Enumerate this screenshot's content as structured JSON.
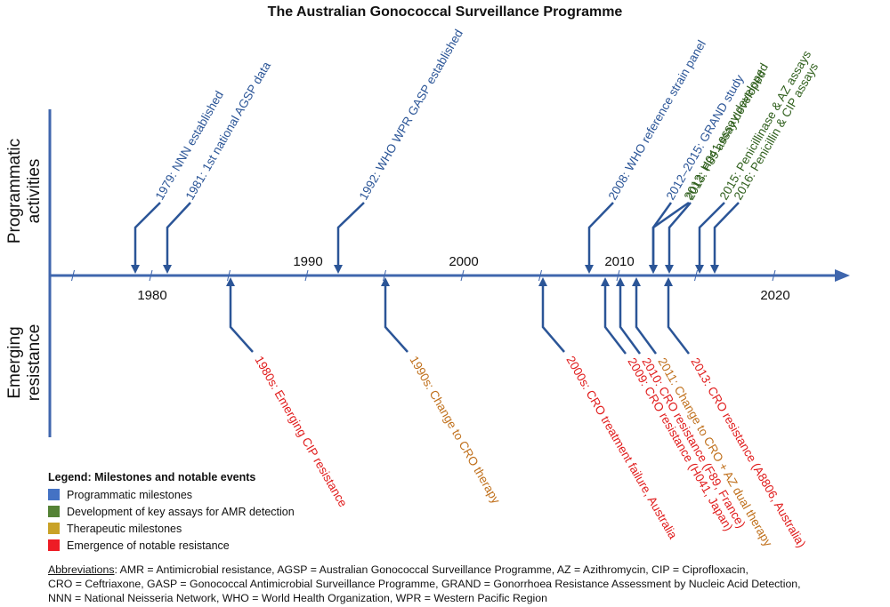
{
  "title": "The Australian Gonococcal Surveillance Programme",
  "axis_labels": {
    "top": [
      "Programmatic",
      "activities"
    ],
    "bottom": [
      "Emerging",
      "resistance"
    ]
  },
  "year_labels": [
    {
      "year": 1980,
      "label": "1980",
      "side": "below"
    },
    {
      "year": 1990,
      "label": "1990",
      "side": "above"
    },
    {
      "year": 2000,
      "label": "2000",
      "side": "above"
    },
    {
      "year": 2010,
      "label": "2010",
      "side": "above"
    },
    {
      "year": 2020,
      "label": "2020",
      "side": "below"
    }
  ],
  "colors": {
    "axis": "#3f66ad",
    "programmatic": "#2b5597",
    "assay": "#2f5f1c",
    "therapeutic": "#c0701c",
    "resistance": "#e01b1b",
    "arrow": "#2b5597"
  },
  "events_top": [
    {
      "year": 1979,
      "text": "1979: NNN established",
      "category": "programmatic"
    },
    {
      "year": 1981,
      "text": "1981: 1st national AGSP data",
      "category": "programmatic"
    },
    {
      "year": 1992,
      "text": "1992: WHO WPR GASP established",
      "category": "programmatic"
    },
    {
      "year": 2008,
      "text": "2008: WHO reference strain panel",
      "category": "programmatic"
    },
    {
      "year": 2012,
      "text": "2012–2015: GRAND study",
      "category": "programmatic"
    },
    {
      "year": 2013,
      "text": "2012: H041 assay developed",
      "category": "assay"
    },
    {
      "year": 2013,
      "text": "2013: F89 assay developed",
      "category": "assay"
    },
    {
      "year": 2015,
      "text": "2015: Penicillinase & AZ assays",
      "category": "assay"
    },
    {
      "year": 2016,
      "text": "2016: Penicillin & CIP assays",
      "category": "assay"
    }
  ],
  "events_bottom": [
    {
      "year": 1985,
      "text": "1980s: Emerging CIP resistance",
      "category": "resistance"
    },
    {
      "year": 1995,
      "text": "1990s: Change to CRO therapy",
      "category": "therapeutic"
    },
    {
      "year": 2005,
      "text": "2000s: CRO treatment failure, Australia",
      "category": "resistance"
    },
    {
      "year": 2009,
      "text": "2009: CRO resistance (H041, Japan)",
      "category": "resistance"
    },
    {
      "year": 2010,
      "text": "2010: CRO resistance (F89, France)",
      "category": "resistance"
    },
    {
      "year": 2011,
      "text": "2011: Change to CRO + AZ dual therapy",
      "category": "therapeutic"
    },
    {
      "year": 2013,
      "text": "2013: CRO resistance (A8806, Australia)",
      "category": "resistance"
    }
  ],
  "legend": {
    "title": "Legend: Milestones and notable events",
    "items": [
      {
        "label": "Programmatic milestones",
        "color": "#4472c4"
      },
      {
        "label": "Development of key assays for AMR detection",
        "color": "#548235"
      },
      {
        "label": "Therapeutic milestones",
        "color": "#c9a227"
      },
      {
        "label": "Emergence of notable resistance",
        "color": "#ee1c25"
      }
    ]
  },
  "abbreviations": {
    "heading": "Abbreviations",
    "lines": [
      ": AMR = Antimicrobial resistance, AGSP = Australian Gonococcal Surveillance Programme, AZ = Azithromycin, CIP = Ciprofloxacin,",
      "CRO = Ceftriaxone, GASP = Gonococcal Antimicrobial Surveillance Programme, GRAND = Gonorrhoea Resistance Assessment by Nucleic Acid Detection,",
      "NNN = National Neisseria Network, WHO = World Health Organization, WPR = Western Pacific Region"
    ]
  }
}
